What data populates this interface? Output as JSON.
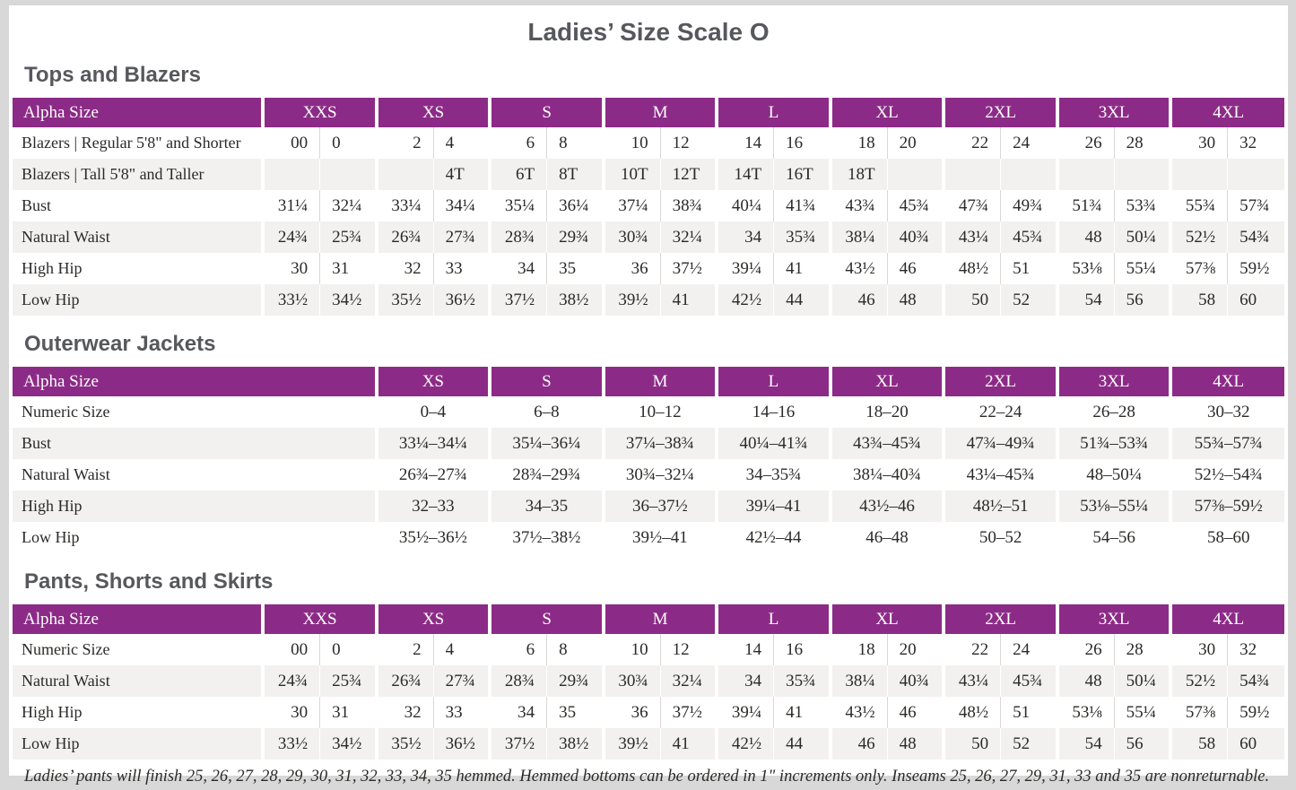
{
  "page": {
    "title": "Ladies’ Size Scale O",
    "footnote": "Ladies’ pants will finish 25, 26, 27, 28, 29, 30, 31, 32, 33, 34, 35 hemmed. Hemmed bottoms can be ordered in 1\" increments only. Inseams 25, 26, 27, 29, 31, 33 and 35 are nonreturnable.",
    "colors": {
      "header_bg": "#8C2B87",
      "header_text": "#FFFFFF",
      "stripe": "#F2F1EF",
      "heading_text": "#57585C",
      "body_text": "#2B2A28",
      "pair_divider": "#D9D8D6",
      "frame": "#D8D8D8"
    }
  },
  "sections": [
    {
      "heading": "Tops and Blazers",
      "table": {
        "label_header": "Alpha Size",
        "columns_per_group": 2,
        "groups": [
          "XXS",
          "XS",
          "S",
          "M",
          "L",
          "XL",
          "2XL",
          "3XL",
          "4XL"
        ],
        "rows": [
          {
            "label": "Blazers | Regular 5'8\" and Shorter",
            "cells": [
              [
                "00",
                "0"
              ],
              [
                "2",
                "4"
              ],
              [
                "6",
                "8"
              ],
              [
                "10",
                "12"
              ],
              [
                "14",
                "16"
              ],
              [
                "18",
                "20"
              ],
              [
                "22",
                "24"
              ],
              [
                "26",
                "28"
              ],
              [
                "30",
                "32"
              ]
            ]
          },
          {
            "label": "Blazers | Tall 5'8\" and Taller",
            "cells": [
              [
                "",
                ""
              ],
              [
                "",
                "4T"
              ],
              [
                "6T",
                "8T"
              ],
              [
                "10T",
                "12T"
              ],
              [
                "14T",
                "16T"
              ],
              [
                "18T",
                ""
              ],
              [
                "",
                ""
              ],
              [
                "",
                ""
              ],
              [
                "",
                ""
              ]
            ]
          },
          {
            "label": "Bust",
            "cells": [
              [
                "31¼",
                "32¼"
              ],
              [
                "33¼",
                "34¼"
              ],
              [
                "35¼",
                "36¼"
              ],
              [
                "37¼",
                "38¾"
              ],
              [
                "40¼",
                "41¾"
              ],
              [
                "43¾",
                "45¾"
              ],
              [
                "47¾",
                "49¾"
              ],
              [
                "51¾",
                "53¾"
              ],
              [
                "55¾",
                "57¾"
              ]
            ]
          },
          {
            "label": "Natural Waist",
            "cells": [
              [
                "24¾",
                "25¾"
              ],
              [
                "26¾",
                "27¾"
              ],
              [
                "28¾",
                "29¾"
              ],
              [
                "30¾",
                "32¼"
              ],
              [
                "34",
                "35¾"
              ],
              [
                "38¼",
                "40¾"
              ],
              [
                "43¼",
                "45¾"
              ],
              [
                "48",
                "50¼"
              ],
              [
                "52½",
                "54¾"
              ]
            ]
          },
          {
            "label": "High Hip",
            "cells": [
              [
                "30",
                "31"
              ],
              [
                "32",
                "33"
              ],
              [
                "34",
                "35"
              ],
              [
                "36",
                "37½"
              ],
              [
                "39¼",
                "41"
              ],
              [
                "43½",
                "46"
              ],
              [
                "48½",
                "51"
              ],
              [
                "53⅛",
                "55¼"
              ],
              [
                "57⅜",
                "59½"
              ]
            ]
          },
          {
            "label": "Low Hip",
            "cells": [
              [
                "33½",
                "34½"
              ],
              [
                "35½",
                "36½"
              ],
              [
                "37½",
                "38½"
              ],
              [
                "39½",
                "41"
              ],
              [
                "42½",
                "44"
              ],
              [
                "46",
                "48"
              ],
              [
                "50",
                "52"
              ],
              [
                "54",
                "56"
              ],
              [
                "58",
                "60"
              ]
            ]
          }
        ]
      }
    },
    {
      "heading": "Outerwear Jackets",
      "table": {
        "label_header": "Alpha Size",
        "columns_per_group": 1,
        "groups": [
          "XS",
          "S",
          "M",
          "L",
          "XL",
          "2XL",
          "3XL",
          "4XL"
        ],
        "rows": [
          {
            "label": "Numeric Size",
            "cells": [
              [
                "0–4"
              ],
              [
                "6–8"
              ],
              [
                "10–12"
              ],
              [
                "14–16"
              ],
              [
                "18–20"
              ],
              [
                "22–24"
              ],
              [
                "26–28"
              ],
              [
                "30–32"
              ]
            ]
          },
          {
            "label": "Bust",
            "cells": [
              [
                "33¼–34¼"
              ],
              [
                "35¼–36¼"
              ],
              [
                "37¼–38¾"
              ],
              [
                "40¼–41¾"
              ],
              [
                "43¾–45¾"
              ],
              [
                "47¾–49¾"
              ],
              [
                "51¾–53¾"
              ],
              [
                "55¾–57¾"
              ]
            ]
          },
          {
            "label": "Natural Waist",
            "cells": [
              [
                "26¾–27¾"
              ],
              [
                "28¾–29¾"
              ],
              [
                "30¾–32¼"
              ],
              [
                "34–35¾"
              ],
              [
                "38¼–40¾"
              ],
              [
                "43¼–45¾"
              ],
              [
                "48–50¼"
              ],
              [
                "52½–54¾"
              ]
            ]
          },
          {
            "label": "High Hip",
            "cells": [
              [
                "32–33"
              ],
              [
                "34–35"
              ],
              [
                "36–37½"
              ],
              [
                "39¼–41"
              ],
              [
                "43½–46"
              ],
              [
                "48½–51"
              ],
              [
                "53⅛–55¼"
              ],
              [
                "57⅜–59½"
              ]
            ]
          },
          {
            "label": "Low Hip",
            "cells": [
              [
                "35½–36½"
              ],
              [
                "37½–38½"
              ],
              [
                "39½–41"
              ],
              [
                "42½–44"
              ],
              [
                "46–48"
              ],
              [
                "50–52"
              ],
              [
                "54–56"
              ],
              [
                "58–60"
              ]
            ]
          }
        ]
      }
    },
    {
      "heading": "Pants, Shorts and Skirts",
      "table": {
        "label_header": "Alpha Size",
        "columns_per_group": 2,
        "groups": [
          "XXS",
          "XS",
          "S",
          "M",
          "L",
          "XL",
          "2XL",
          "3XL",
          "4XL"
        ],
        "rows": [
          {
            "label": "Numeric Size",
            "cells": [
              [
                "00",
                "0"
              ],
              [
                "2",
                "4"
              ],
              [
                "6",
                "8"
              ],
              [
                "10",
                "12"
              ],
              [
                "14",
                "16"
              ],
              [
                "18",
                "20"
              ],
              [
                "22",
                "24"
              ],
              [
                "26",
                "28"
              ],
              [
                "30",
                "32"
              ]
            ]
          },
          {
            "label": "Natural Waist",
            "cells": [
              [
                "24¾",
                "25¾"
              ],
              [
                "26¾",
                "27¾"
              ],
              [
                "28¾",
                "29¾"
              ],
              [
                "30¾",
                "32¼"
              ],
              [
                "34",
                "35¾"
              ],
              [
                "38¼",
                "40¾"
              ],
              [
                "43¼",
                "45¾"
              ],
              [
                "48",
                "50¼"
              ],
              [
                "52½",
                "54¾"
              ]
            ]
          },
          {
            "label": "High Hip",
            "cells": [
              [
                "30",
                "31"
              ],
              [
                "32",
                "33"
              ],
              [
                "34",
                "35"
              ],
              [
                "36",
                "37½"
              ],
              [
                "39¼",
                "41"
              ],
              [
                "43½",
                "46"
              ],
              [
                "48½",
                "51"
              ],
              [
                "53⅛",
                "55¼"
              ],
              [
                "57⅜",
                "59½"
              ]
            ]
          },
          {
            "label": "Low Hip",
            "cells": [
              [
                "33½",
                "34½"
              ],
              [
                "35½",
                "36½"
              ],
              [
                "37½",
                "38½"
              ],
              [
                "39½",
                "41"
              ],
              [
                "42½",
                "44"
              ],
              [
                "46",
                "48"
              ],
              [
                "50",
                "52"
              ],
              [
                "54",
                "56"
              ],
              [
                "58",
                "60"
              ]
            ]
          }
        ]
      }
    }
  ]
}
